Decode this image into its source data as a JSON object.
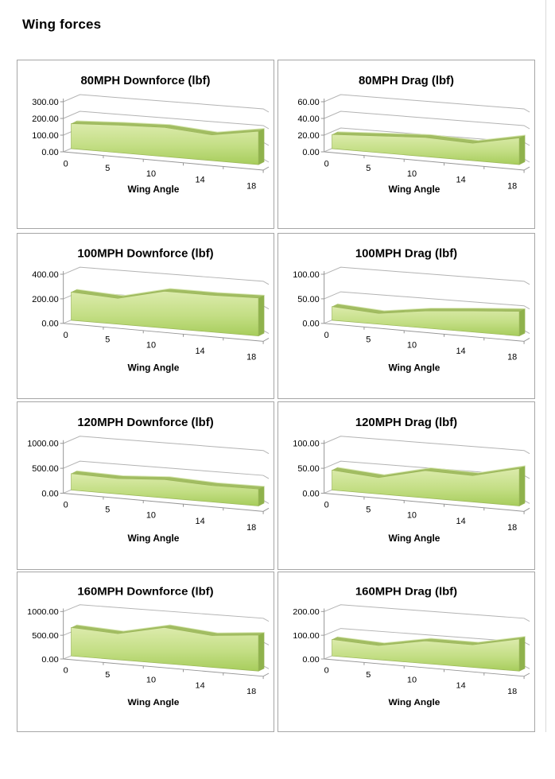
{
  "page": {
    "title": "Wing forces"
  },
  "colors": {
    "area_gradient_top": "#dcebac",
    "area_gradient_mid": "#c3de84",
    "area_gradient_bottom": "#a7cd5c",
    "area_top_band": "#a2bd62",
    "area_top_highlight": "#d9e8b4",
    "area_side_face": "#8fb24c",
    "area_edge": "#9ab558",
    "gridline": "#b3b3b3",
    "axis": "#969696",
    "chart_border": "#a6a6a6",
    "text": "#000000"
  },
  "chart_data": [
    {
      "type": "area",
      "style": "3d",
      "title": "80MPH Downforce (lbf)",
      "xlabel": "Wing Angle",
      "categories": [
        "0",
        "5",
        "10",
        "14",
        "18"
      ],
      "values": [
        150,
        165,
        175,
        155,
        200
      ],
      "y_ticks": [
        0,
        100,
        200,
        300
      ],
      "y_tick_labels": [
        "0.00",
        "100.00",
        "200.00",
        "300.00"
      ],
      "ylim": [
        0,
        300
      ],
      "grid": true,
      "legend": "none"
    },
    {
      "type": "area",
      "style": "3d",
      "title": "80MPH Drag (lbf)",
      "xlabel": "Wing Angle",
      "categories": [
        "0",
        "5",
        "10",
        "14",
        "18"
      ],
      "values": [
        17,
        20,
        23,
        21,
        32
      ],
      "y_ticks": [
        0,
        20,
        40,
        60
      ],
      "y_tick_labels": [
        "0.00",
        "20.00",
        "40.00",
        "60.00"
      ],
      "ylim": [
        0,
        60
      ],
      "grid": true,
      "legend": "none"
    },
    {
      "type": "area",
      "style": "3d",
      "title": "100MPH Downforce (lbf)",
      "xlabel": "Wing Angle",
      "categories": [
        "0",
        "5",
        "10",
        "14",
        "18"
      ],
      "values": [
        230,
        210,
        300,
        300,
        310
      ],
      "y_ticks": [
        0,
        200,
        400
      ],
      "y_tick_labels": [
        "0.00",
        "200.00",
        "400.00"
      ],
      "ylim": [
        0,
        400
      ],
      "grid": true,
      "legend": "none"
    },
    {
      "type": "area",
      "style": "3d",
      "title": "100MPH Drag (lbf)",
      "xlabel": "Wing Angle",
      "categories": [
        "0",
        "5",
        "10",
        "14",
        "18"
      ],
      "values": [
        28,
        22,
        35,
        43,
        50
      ],
      "y_ticks": [
        0,
        50,
        100
      ],
      "y_tick_labels": [
        "0.00",
        "50.00",
        "100.00"
      ],
      "ylim": [
        0,
        100
      ],
      "grid": true,
      "legend": "none"
    },
    {
      "type": "area",
      "style": "3d",
      "title": "120MPH Downforce (lbf)",
      "xlabel": "Wing Angle",
      "categories": [
        "0",
        "5",
        "10",
        "14",
        "18"
      ],
      "values": [
        330,
        310,
        370,
        330,
        340
      ],
      "y_ticks": [
        0,
        500,
        1000
      ],
      "y_tick_labels": [
        "0.00",
        "500.00",
        "1000.00"
      ],
      "ylim": [
        0,
        1000
      ],
      "grid": true,
      "legend": "none"
    },
    {
      "type": "area",
      "style": "3d",
      "title": "120MPH Drag (lbf)",
      "xlabel": "Wing Angle",
      "categories": [
        "0",
        "5",
        "10",
        "14",
        "18"
      ],
      "values": [
        40,
        33,
        55,
        53,
        75
      ],
      "y_ticks": [
        0,
        50,
        100
      ],
      "y_tick_labels": [
        "0.00",
        "50.00",
        "100.00"
      ],
      "ylim": [
        0,
        100
      ],
      "grid": true,
      "legend": "none"
    },
    {
      "type": "area",
      "style": "3d",
      "title": "160MPH Downforce (lbf)",
      "xlabel": "Wing Angle",
      "categories": [
        "0",
        "5",
        "10",
        "14",
        "18"
      ],
      "values": [
        600,
        550,
        760,
        670,
        760
      ],
      "y_ticks": [
        0,
        500,
        1000
      ],
      "y_tick_labels": [
        "0.00",
        "500.00",
        "1000.00"
      ],
      "ylim": [
        0,
        1000
      ],
      "grid": true,
      "legend": "none"
    },
    {
      "type": "area",
      "style": "3d",
      "title": "160MPH Drag (lbf)",
      "xlabel": "Wing Angle",
      "categories": [
        "0",
        "5",
        "10",
        "14",
        "18"
      ],
      "values": [
        70,
        60,
        95,
        95,
        135
      ],
      "y_ticks": [
        0,
        100,
        200
      ],
      "y_tick_labels": [
        "0.00",
        "100.00",
        "200.00"
      ],
      "ylim": [
        0,
        200
      ],
      "grid": true,
      "legend": "none"
    }
  ]
}
